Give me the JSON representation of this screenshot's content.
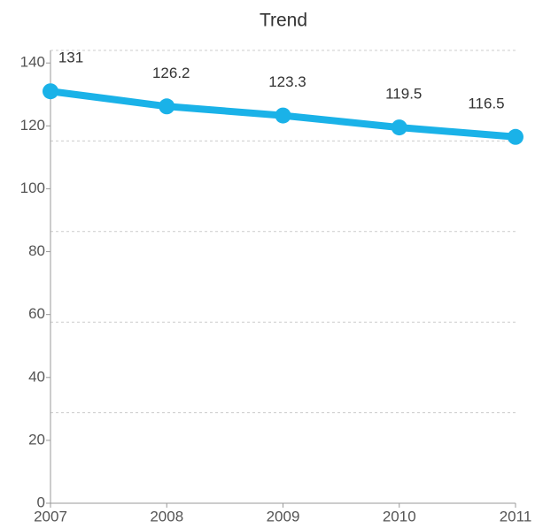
{
  "chart_data": {
    "type": "line",
    "title": "Trend",
    "x": [
      2007,
      2008,
      2009,
      2010,
      2011
    ],
    "series": [
      {
        "name": "Trend",
        "color": "#1ab2e8",
        "values": [
          131,
          126.2,
          123.3,
          119.5,
          116.5
        ]
      }
    ],
    "xlim": [
      2007,
      2011
    ],
    "xticks": [
      2007,
      2008,
      2009,
      2010,
      2011
    ],
    "ylim": [
      0,
      144
    ],
    "yticks": [
      0,
      20,
      40,
      60,
      80,
      100,
      120,
      140
    ],
    "ygrid": [
      28.8,
      57.6,
      86.4,
      115.2,
      144
    ],
    "grid": true
  }
}
